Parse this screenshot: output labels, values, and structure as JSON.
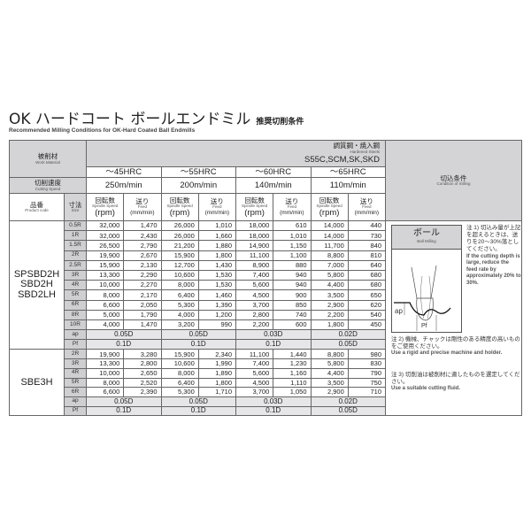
{
  "title": "OK ハードコート ボールエンドミル",
  "title_sub": "推奨切削条件",
  "subtitle": "Recommended Milling Conditions for OK-Hard Coated Ball Endmills",
  "header": {
    "material_jp": "被削材",
    "material_en": "Work Material",
    "steel_jp": "調質鋼・焼入鋼",
    "steel_en": "Hardened Steels",
    "steel_grades": "S55C,SCM,SK,SKD",
    "hardness": [
      "～45HRC",
      "～55HRC",
      "～60HRC",
      "～65HRC"
    ],
    "speed_jp": "切削速度",
    "speed_en": "Cutting Speed",
    "speeds": [
      "250m/min",
      "200m/min",
      "140m/min",
      "110m/min"
    ],
    "product_jp": "品番",
    "product_en": "Product code",
    "size_jp": "寸法",
    "size_en": "Size",
    "rpm_jp": "回転数",
    "rpm_en": "Spindle Speed",
    "rpm_unit": "(rpm)",
    "feed_jp": "送り",
    "feed_en": "Feed",
    "feed_unit": "(mm/min)",
    "cond_jp": "切込条件",
    "cond_en": "Condition of milling"
  },
  "groups": [
    {
      "product": "SPSBD2H\nSBD2H\nSBD2LH",
      "rows": [
        [
          "0.5R",
          "32,000",
          "1,470",
          "26,000",
          "1,010",
          "18,000",
          "610",
          "14,000",
          "440"
        ],
        [
          "1R",
          "32,000",
          "2,430",
          "26,000",
          "1,660",
          "18,000",
          "1,010",
          "14,000",
          "730"
        ],
        [
          "1.5R",
          "26,500",
          "2,790",
          "21,200",
          "1,880",
          "14,900",
          "1,150",
          "11,700",
          "840"
        ],
        [
          "2R",
          "19,900",
          "2,670",
          "15,900",
          "1,800",
          "11,100",
          "1,100",
          "8,800",
          "810"
        ],
        [
          "2.5R",
          "15,900",
          "2,130",
          "12,700",
          "1,430",
          "8,900",
          "880",
          "7,000",
          "640"
        ],
        [
          "3R",
          "13,300",
          "2,290",
          "10,600",
          "1,530",
          "7,400",
          "940",
          "5,800",
          "680"
        ],
        [
          "4R",
          "10,000",
          "2,270",
          "8,000",
          "1,530",
          "5,600",
          "940",
          "4,400",
          "680"
        ],
        [
          "5R",
          "8,000",
          "2,170",
          "6,400",
          "1,460",
          "4,500",
          "900",
          "3,500",
          "650"
        ],
        [
          "6R",
          "6,600",
          "2,050",
          "5,300",
          "1,390",
          "3,700",
          "850",
          "2,900",
          "620"
        ],
        [
          "8R",
          "5,000",
          "1,790",
          "4,000",
          "1,200",
          "2,800",
          "740",
          "2,200",
          "540"
        ],
        [
          "10R",
          "4,000",
          "1,470",
          "3,200",
          "990",
          "2,200",
          "600",
          "1,800",
          "450"
        ]
      ],
      "ap": [
        "ap",
        "0.05D",
        "0.05D",
        "0.03D",
        "0.02D"
      ],
      "pf": [
        "Pf",
        "0.1D",
        "0.1D",
        "0.1D",
        "0.05D"
      ]
    },
    {
      "product": "SBE3H",
      "rows": [
        [
          "2R",
          "19,900",
          "3,280",
          "15,900",
          "2,340",
          "11,100",
          "1,440",
          "8,800",
          "980"
        ],
        [
          "3R",
          "13,300",
          "2,800",
          "10,600",
          "1,990",
          "7,400",
          "1,230",
          "5,800",
          "830"
        ],
        [
          "4R",
          "10,000",
          "2,650",
          "8,000",
          "1,890",
          "5,600",
          "1,160",
          "4,400",
          "790"
        ],
        [
          "5R",
          "8,000",
          "2,520",
          "6,400",
          "1,800",
          "4,500",
          "1,110",
          "3,500",
          "750"
        ],
        [
          "6R",
          "6,600",
          "2,390",
          "5,300",
          "1,710",
          "3,700",
          "1,050",
          "2,900",
          "710"
        ]
      ],
      "ap": [
        "ap",
        "0.05D",
        "0.05D",
        "0.03D",
        "0.02D"
      ],
      "pf": [
        "Pf",
        "0.1D",
        "0.1D",
        "0.1D",
        "0.05D"
      ]
    }
  ],
  "diagram": {
    "title_jp": "ボール",
    "title_en": "Ball Milling",
    "ap": "ap",
    "pf": "Pf"
  },
  "notes": [
    {
      "jp": "注 1) 切込み量が上記を超えるときは、送りを20～30%落としてください。",
      "en": "If the cutting depth is large, reduce the feed rate by approximately 20% to 30%."
    },
    {
      "jp": "注 2) 機械、チャックは剛性のある精度の高いものをご使用ください。",
      "en": "Use a rigid and precise machine and holder."
    },
    {
      "jp": "注 3) 切削油は被削材に適したものを選定してください。",
      "en": "Use a suitable cutting fluid."
    }
  ]
}
